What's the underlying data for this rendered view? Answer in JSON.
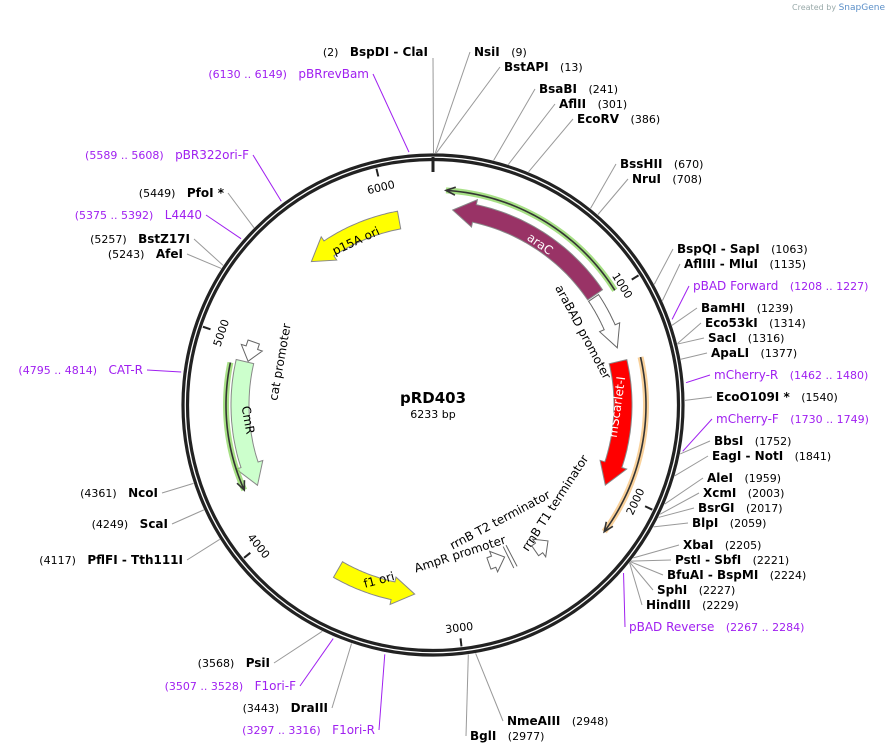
{
  "branding": {
    "prefix": "Created by",
    "name": "SnapGene"
  },
  "plasmid": {
    "name": "pRD403",
    "length_label": "6233 bp",
    "length": 6233
  },
  "ticks": [
    1000,
    2000,
    3000,
    4000,
    5000,
    6000
  ],
  "colors": {
    "enzyme": "#000000",
    "primer": "#a020f0",
    "ring": "#222222"
  },
  "features": [
    {
      "name": "araC",
      "start": 100,
      "end": 966,
      "strand": "reverse",
      "kind": "gene",
      "color": "#993366",
      "label_color": "#ffffff"
    },
    {
      "name": "araC-line",
      "start": 60,
      "end": 1000,
      "strand": "reverse",
      "kind": "line",
      "color": "#8ad65c"
    },
    {
      "name": "araBAD promoter",
      "start": 975,
      "end": 1260,
      "strand": "forward",
      "kind": "promoter",
      "color": "#ffffff"
    },
    {
      "name": "mScarlet-I",
      "start": 1330,
      "end": 1990,
      "strand": "forward",
      "kind": "gene",
      "color": "#ff0000",
      "label_color": "#ffffff"
    },
    {
      "name": "mScarlet-line",
      "start": 1333,
      "end": 2190,
      "strand": "forward",
      "kind": "line",
      "color": "#f7c27a"
    },
    {
      "name": "rrnB T1 terminator",
      "start": 2420,
      "end": 2510,
      "strand": "reverse",
      "kind": "terminator",
      "color": "#ffffff"
    },
    {
      "name": "rrnB T2 terminator",
      "start": 2640,
      "end": 2660,
      "strand": "forward",
      "kind": "bar",
      "color": "#ffffff"
    },
    {
      "name": "AmpR promoter",
      "start": 2680,
      "end": 2780,
      "strand": "reverse",
      "kind": "promoter",
      "color": "#ffffff"
    },
    {
      "name": "f1 ori",
      "start": 3212,
      "end": 3636,
      "strand": "reverse",
      "kind": "gene",
      "color": "#ffff00",
      "label_color": "#000000"
    },
    {
      "name": "CmR",
      "start": 4249,
      "end": 4900,
      "strand": "reverse",
      "kind": "gene",
      "color": "#ccffcc",
      "label_color": "#000000"
    },
    {
      "name": "CmR-line",
      "start": 4255,
      "end": 4880,
      "strand": "reverse",
      "kind": "line",
      "color": "#8ad65c"
    },
    {
      "name": "cat promoter",
      "start": 4905,
      "end": 5010,
      "strand": "reverse",
      "kind": "promoter",
      "color": "#ffffff"
    },
    {
      "name": "p15A ori",
      "start": 5535,
      "end": 6053,
      "strand": "reverse",
      "kind": "gene",
      "color": "#ffff00",
      "label_color": "#000000"
    }
  ],
  "sites": [
    {
      "name": "BspDI  -  ClaI",
      "pos": "(2)",
      "at": 2,
      "type": "enzyme"
    },
    {
      "name": "NsiI",
      "pos": "(9)",
      "at": 9,
      "type": "enzyme"
    },
    {
      "name": "BstAPI",
      "pos": "(13)",
      "at": 13,
      "type": "enzyme"
    },
    {
      "name": "BsaBI",
      "pos": "(241)",
      "at": 241,
      "type": "enzyme"
    },
    {
      "name": "AflII",
      "pos": "(301)",
      "at": 301,
      "type": "enzyme"
    },
    {
      "name": "EcoRV",
      "pos": "(386)",
      "at": 386,
      "type": "enzyme"
    },
    {
      "name": "BssHII",
      "pos": "(670)",
      "at": 670,
      "type": "enzyme"
    },
    {
      "name": "NruI",
      "pos": "(708)",
      "at": 708,
      "type": "enzyme"
    },
    {
      "name": "BspQI  -  SapI",
      "pos": "(1063)",
      "at": 1063,
      "type": "enzyme"
    },
    {
      "name": "AflIII  -  MluI",
      "pos": "(1135)",
      "at": 1135,
      "type": "enzyme"
    },
    {
      "name": "pBAD Forward",
      "pos": "(1208 .. 1227)",
      "at": 1217,
      "type": "primer"
    },
    {
      "name": "BamHI",
      "pos": "(1239)",
      "at": 1239,
      "type": "enzyme"
    },
    {
      "name": "Eco53kI",
      "pos": "(1314)",
      "at": 1314,
      "type": "enzyme"
    },
    {
      "name": "SacI",
      "pos": "(1316)",
      "at": 1316,
      "type": "enzyme"
    },
    {
      "name": "ApaLI",
      "pos": "(1377)",
      "at": 1377,
      "type": "enzyme"
    },
    {
      "name": "mCherry-R",
      "pos": "(1462 .. 1480)",
      "at": 1471,
      "type": "primer"
    },
    {
      "name": "EcoO109I *",
      "pos": "(1540)",
      "at": 1540,
      "type": "enzyme"
    },
    {
      "name": "mCherry-F",
      "pos": "(1730 .. 1749)",
      "at": 1740,
      "type": "primer"
    },
    {
      "name": "BbsI",
      "pos": "(1752)",
      "at": 1752,
      "type": "enzyme"
    },
    {
      "name": "EagI  -  NotI",
      "pos": "(1841)",
      "at": 1841,
      "type": "enzyme"
    },
    {
      "name": "AleI",
      "pos": "(1959)",
      "at": 1959,
      "type": "enzyme"
    },
    {
      "name": "XcmI",
      "pos": "(2003)",
      "at": 2003,
      "type": "enzyme"
    },
    {
      "name": "BsrGI",
      "pos": "(2017)",
      "at": 2017,
      "type": "enzyme"
    },
    {
      "name": "BlpI",
      "pos": "(2059)",
      "at": 2059,
      "type": "enzyme"
    },
    {
      "name": "XbaI",
      "pos": "(2205)",
      "at": 2205,
      "type": "enzyme"
    },
    {
      "name": "PstI  -  SbfI",
      "pos": "(2221)",
      "at": 2221,
      "type": "enzyme"
    },
    {
      "name": "BfuAI  -  BspMI",
      "pos": "(2224)",
      "at": 2224,
      "type": "enzyme"
    },
    {
      "name": "SphI",
      "pos": "(2227)",
      "at": 2227,
      "type": "enzyme"
    },
    {
      "name": "HindIII",
      "pos": "(2229)",
      "at": 2229,
      "type": "enzyme"
    },
    {
      "name": "pBAD Reverse",
      "pos": "(2267 .. 2284)",
      "at": 2275,
      "type": "primer"
    },
    {
      "name": "NmeAIII",
      "pos": "(2948)",
      "at": 2948,
      "type": "enzyme"
    },
    {
      "name": "BglI",
      "pos": "(2977)",
      "at": 2977,
      "type": "enzyme"
    },
    {
      "name": "F1ori-R",
      "pos": "(3297 .. 3316)",
      "at": 3306,
      "type": "primer"
    },
    {
      "name": "DraIII",
      "pos": "(3443)",
      "at": 3443,
      "type": "enzyme"
    },
    {
      "name": "F1ori-F",
      "pos": "(3507 .. 3528)",
      "at": 3517,
      "type": "primer"
    },
    {
      "name": "PsiI",
      "pos": "(3568)",
      "at": 3568,
      "type": "enzyme"
    },
    {
      "name": "PflFI  -  Tth111I",
      "pos": "(4117)",
      "at": 4117,
      "type": "enzyme"
    },
    {
      "name": "ScaI",
      "pos": "(4249)",
      "at": 4249,
      "type": "enzyme"
    },
    {
      "name": "NcoI",
      "pos": "(4361)",
      "at": 4361,
      "type": "enzyme"
    },
    {
      "name": "CAT-R",
      "pos": "(4795 .. 4814)",
      "at": 4804,
      "type": "primer"
    },
    {
      "name": "AfeI",
      "pos": "(5243)",
      "at": 5243,
      "type": "enzyme"
    },
    {
      "name": "BstZ17I",
      "pos": "(5257)",
      "at": 5257,
      "type": "enzyme"
    },
    {
      "name": "L4440",
      "pos": "(5375 .. 5392)",
      "at": 5383,
      "type": "primer"
    },
    {
      "name": "PfoI *",
      "pos": "(5449)",
      "at": 5449,
      "type": "enzyme"
    },
    {
      "name": "pBR322ori-F",
      "pos": "(5589 .. 5608)",
      "at": 5598,
      "type": "primer"
    },
    {
      "name": "pBRrevBam",
      "pos": "(6130 .. 6149)",
      "at": 6139,
      "type": "primer"
    }
  ]
}
